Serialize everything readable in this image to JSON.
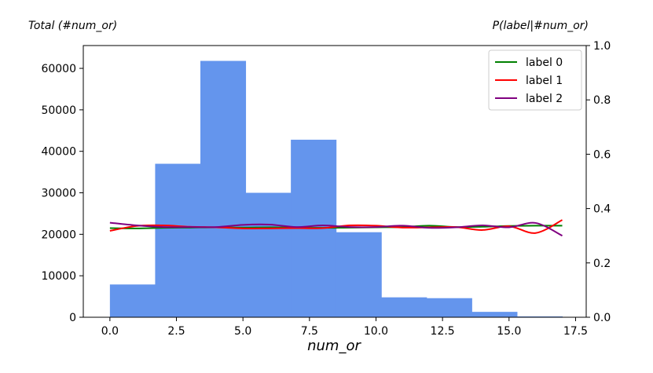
{
  "chart_data": {
    "type": "bar",
    "xlabel": "num_or",
    "ylabel_left": "Total (#num_or)",
    "ylabel_right": "P(label|#num_or)",
    "xlim": [
      -1.0,
      17.9
    ],
    "ylim_left": [
      0,
      65500
    ],
    "ylim_right": [
      0.0,
      1.0
    ],
    "x_ticks": [
      0.0,
      2.5,
      5.0,
      7.5,
      10.0,
      12.5,
      15.0,
      17.5
    ],
    "x_tick_labels": [
      "0.0",
      "2.5",
      "5.0",
      "7.5",
      "10.0",
      "12.5",
      "15.0",
      "17.5"
    ],
    "y_left_ticks": [
      0,
      10000,
      20000,
      30000,
      40000,
      50000,
      60000
    ],
    "y_left_tick_labels": [
      "0",
      "10000",
      "20000",
      "30000",
      "40000",
      "50000",
      "60000"
    ],
    "y_right_ticks": [
      0.0,
      0.2,
      0.4,
      0.6,
      0.8,
      1.0
    ],
    "y_right_tick_labels": [
      "0.0",
      "0.2",
      "0.4",
      "0.6",
      "0.8",
      "1.0"
    ],
    "histogram": {
      "color": "#6495ED",
      "bin_edges": [
        0.0,
        1.7,
        3.4,
        5.1,
        6.8,
        8.5,
        10.2,
        11.9,
        13.6,
        15.3,
        17.0
      ],
      "counts": [
        7900,
        37000,
        61800,
        30000,
        42800,
        20500,
        4800,
        4600,
        1300,
        200
      ]
    },
    "legend": {
      "placement": "top-right"
    },
    "series": [
      {
        "name": "label 0",
        "color": "#008000",
        "x": [
          0,
          1,
          2,
          3,
          4,
          5,
          6,
          7,
          8,
          9,
          10,
          11,
          12,
          13,
          14,
          15,
          16,
          17
        ],
        "values": [
          0.328,
          0.327,
          0.329,
          0.33,
          0.331,
          0.33,
          0.331,
          0.33,
          0.329,
          0.33,
          0.331,
          0.332,
          0.337,
          0.332,
          0.333,
          0.336,
          0.337,
          0.337
        ]
      },
      {
        "name": "label 1",
        "color": "#FF0000",
        "x": [
          0,
          1,
          2,
          3,
          4,
          5,
          6,
          7,
          8,
          9,
          10,
          11,
          12,
          13,
          14,
          15,
          16,
          17
        ],
        "values": [
          0.318,
          0.336,
          0.338,
          0.333,
          0.331,
          0.327,
          0.327,
          0.328,
          0.328,
          0.338,
          0.337,
          0.33,
          0.331,
          0.332,
          0.321,
          0.335,
          0.31,
          0.358
        ]
      },
      {
        "name": "label 2",
        "color": "#800080",
        "x": [
          0,
          1,
          2,
          3,
          4,
          5,
          6,
          7,
          8,
          9,
          10,
          11,
          12,
          13,
          14,
          15,
          16,
          17
        ],
        "values": [
          0.348,
          0.338,
          0.332,
          0.332,
          0.332,
          0.34,
          0.341,
          0.332,
          0.338,
          0.332,
          0.332,
          0.337,
          0.329,
          0.331,
          0.338,
          0.331,
          0.347,
          0.3
        ]
      }
    ]
  }
}
